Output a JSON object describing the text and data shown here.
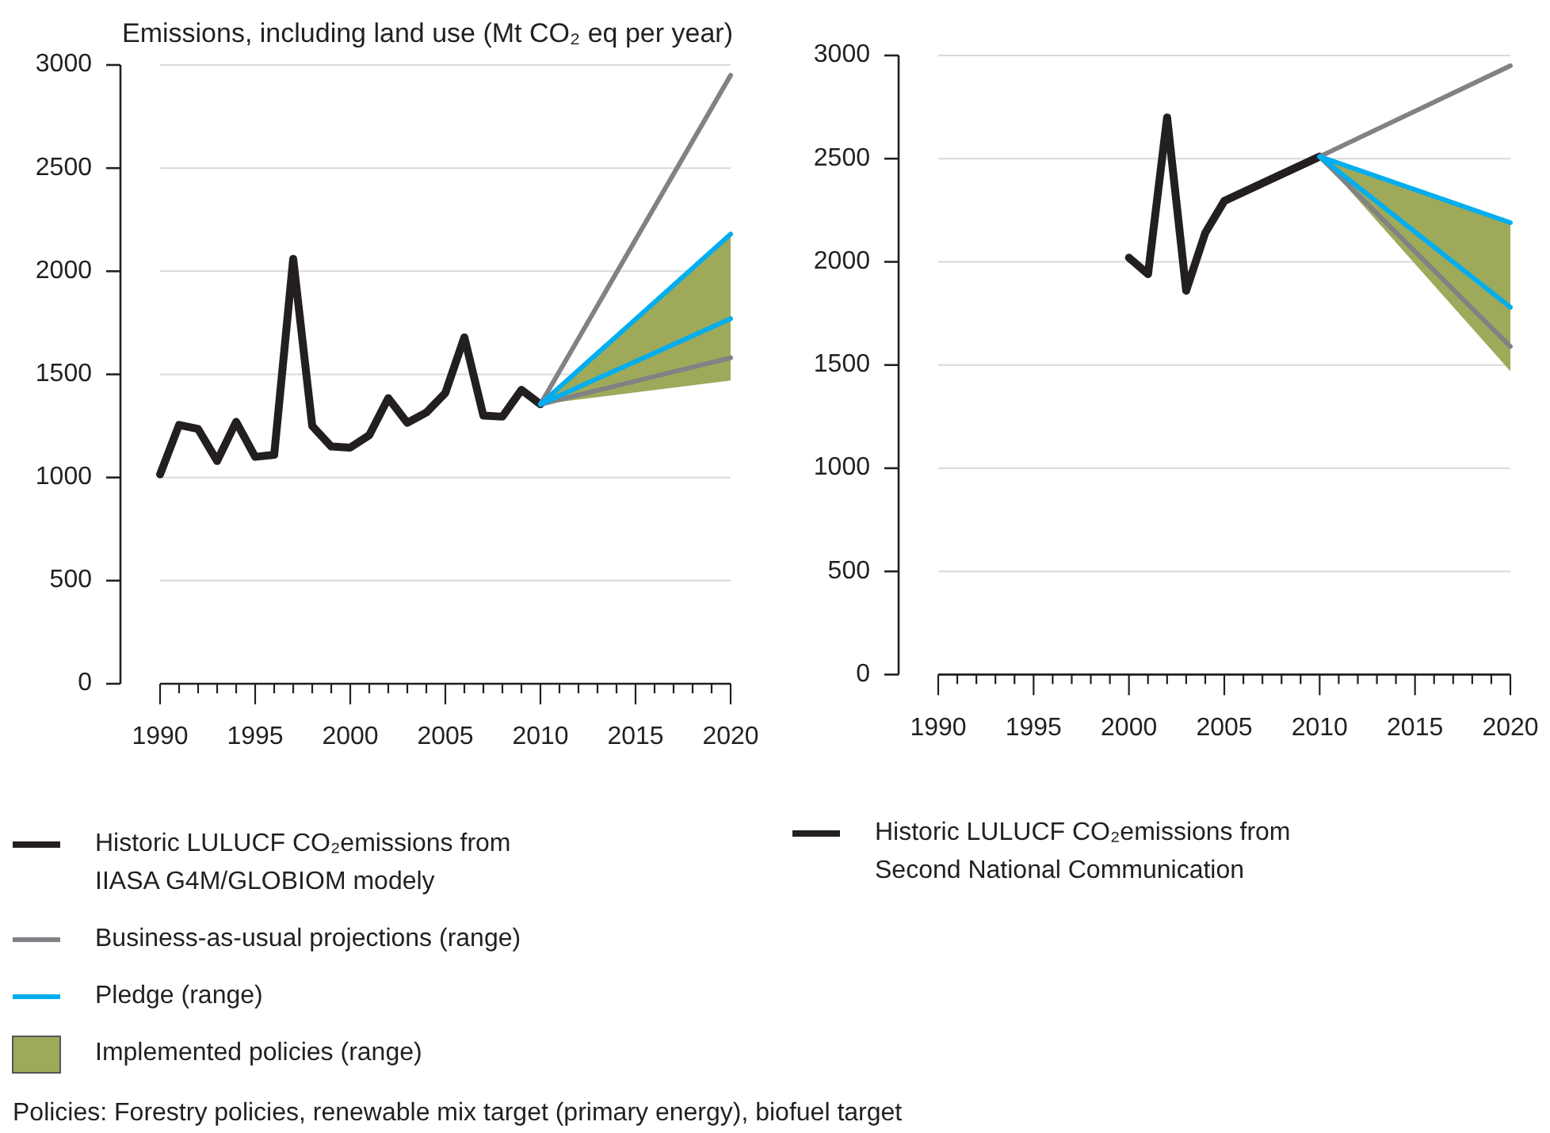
{
  "chart_data": [
    {
      "type": "line",
      "ylabel": "Emissions, including land use (Mt CO₂ eq per year)",
      "xlim": [
        1990,
        2020
      ],
      "xticks": [
        1990,
        {
          "value": 1991,
          "label": null
        },
        {
          "value": 1992,
          "label": null
        },
        {
          "value": 1993,
          "label": null
        },
        {
          "value": 1994,
          "label": null
        },
        1995,
        {
          "value": 1996,
          "label": null
        },
        {
          "value": 1997,
          "label": null
        },
        {
          "value": 1998,
          "label": null
        },
        {
          "value": 1999,
          "label": null
        },
        2000,
        {
          "value": 2001,
          "label": null
        },
        {
          "value": 2002,
          "label": null
        },
        {
          "value": 2003,
          "label": null
        },
        {
          "value": 2004,
          "label": null
        },
        2005,
        {
          "value": 2006,
          "label": null
        },
        {
          "value": 2007,
          "label": null
        },
        {
          "value": 2008,
          "label": null
        },
        {
          "value": 2009,
          "label": null
        },
        2010,
        {
          "value": 2011,
          "label": null
        },
        {
          "value": 2012,
          "label": null
        },
        {
          "value": 2013,
          "label": null
        },
        {
          "value": 2014,
          "label": null
        },
        2015,
        {
          "value": 2016,
          "label": null
        },
        {
          "value": 2017,
          "label": null
        },
        {
          "value": 2018,
          "label": null
        },
        {
          "value": 2019,
          "label": null
        },
        2020
      ],
      "ylim": [
        0,
        3000
      ],
      "yticks": [
        0,
        500,
        1000,
        1500,
        2000,
        2500,
        3000
      ],
      "grid": "y",
      "legend": "bottom",
      "annotations": [
        "Policies: Forestry policies, renewable mix target (primary energy), biofuel target"
      ],
      "series": [
        {
          "name": "Historic LULUCF CO₂emissions from IIASA G4M/GLOBIOM modely",
          "color": "#231f20",
          "x": [
            1990,
            1991,
            1992,
            1993,
            1994,
            1995,
            1996,
            1997,
            1998,
            1999,
            2000,
            2001,
            2002,
            2003,
            2004,
            2005,
            2006,
            2007,
            2008,
            2009,
            2010
          ],
          "values": [
            1015,
            1255,
            1235,
            1080,
            1270,
            1100,
            1110,
            2060,
            1250,
            1150,
            1145,
            1205,
            1385,
            1265,
            1315,
            1410,
            1680,
            1300,
            1295,
            1425,
            1355
          ]
        },
        {
          "name": "Business-as-usual projections (range)",
          "color": "#808285",
          "x": [
            2010,
            2020
          ],
          "values": [
            1355,
            2950
          ]
        },
        {
          "color": "#808285",
          "x": [
            2010,
            2020
          ],
          "values": [
            1355,
            1580
          ]
        },
        {
          "name": "Pledge (range)",
          "color": "#00aeef",
          "x": [
            2010,
            2020
          ],
          "values": [
            1355,
            2180
          ]
        },
        {
          "color": "#00aeef",
          "x": [
            2010,
            2020
          ],
          "values": [
            1355,
            1770
          ]
        },
        {
          "type": "area",
          "name": "Implemented policies (range)",
          "color": "#9fa95a",
          "x": [
            2010,
            2020
          ],
          "values": [
            null,
            null
          ],
          "lower": [
            1355,
            1470
          ],
          "upper": [
            1355,
            2180
          ]
        }
      ]
    },
    {
      "type": "line",
      "xlim": [
        1990,
        2020
      ],
      "xticks": [
        1990,
        {
          "value": 1991,
          "label": null
        },
        {
          "value": 1992,
          "label": null
        },
        {
          "value": 1993,
          "label": null
        },
        {
          "value": 1994,
          "label": null
        },
        1995,
        {
          "value": 1996,
          "label": null
        },
        {
          "value": 1997,
          "label": null
        },
        {
          "value": 1998,
          "label": null
        },
        {
          "value": 1999,
          "label": null
        },
        2000,
        {
          "value": 2001,
          "label": null
        },
        {
          "value": 2002,
          "label": null
        },
        {
          "value": 2003,
          "label": null
        },
        {
          "value": 2004,
          "label": null
        },
        2005,
        {
          "value": 2006,
          "label": null
        },
        {
          "value": 2007,
          "label": null
        },
        {
          "value": 2008,
          "label": null
        },
        {
          "value": 2009,
          "label": null
        },
        2010,
        {
          "value": 2011,
          "label": null
        },
        {
          "value": 2012,
          "label": null
        },
        {
          "value": 2013,
          "label": null
        },
        {
          "value": 2014,
          "label": null
        },
        2015,
        {
          "value": 2016,
          "label": null
        },
        {
          "value": 2017,
          "label": null
        },
        {
          "value": 2018,
          "label": null
        },
        {
          "value": 2019,
          "label": null
        },
        2020
      ],
      "ylim": [
        0,
        3000
      ],
      "yticks": [
        0,
        500,
        1000,
        1500,
        2000,
        2500,
        3000
      ],
      "grid": "y",
      "legend": "bottom",
      "series": [
        {
          "name": "Historic LULUCF CO₂emissions from Second National Communication",
          "color": "#231f20",
          "x": [
            2000,
            2001,
            2002,
            2003,
            2004,
            2005,
            2010
          ],
          "values": [
            2020,
            1940,
            2700,
            1860,
            2140,
            2295,
            2510
          ]
        },
        {
          "color": "#808285",
          "x": [
            2010,
            2020
          ],
          "values": [
            2510,
            2950
          ]
        },
        {
          "color": "#808285",
          "x": [
            2010,
            2020
          ],
          "values": [
            2510,
            1590
          ]
        },
        {
          "color": "#00aeef",
          "x": [
            2010,
            2020
          ],
          "values": [
            2510,
            2190
          ]
        },
        {
          "color": "#00aeef",
          "x": [
            2010,
            2020
          ],
          "values": [
            2510,
            1780
          ]
        },
        {
          "type": "area",
          "color": "#9fa95a",
          "x": [
            2010,
            2020
          ],
          "values": [
            null,
            null
          ],
          "lower": [
            2510,
            1470
          ],
          "upper": [
            2510,
            2190
          ]
        }
      ]
    }
  ]
}
